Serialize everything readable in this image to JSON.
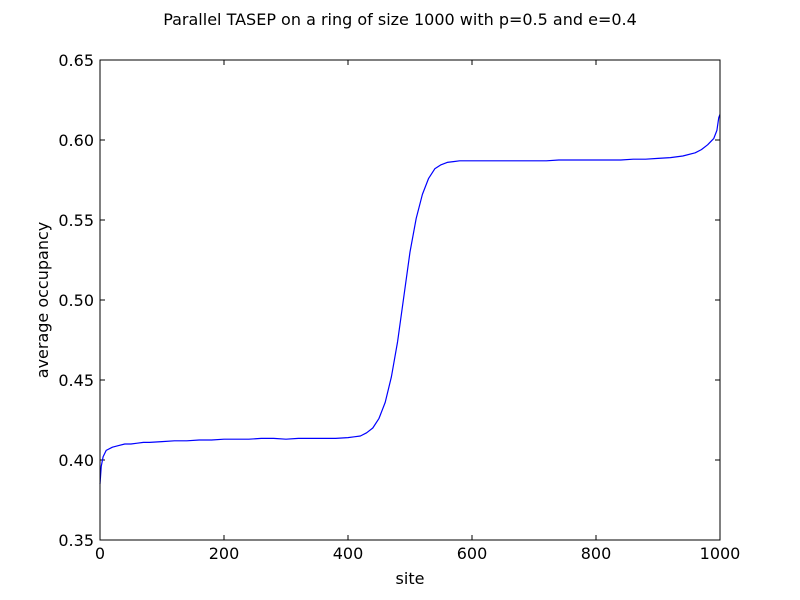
{
  "chart_data": {
    "type": "line",
    "title": "Parallel TASEP on a ring of size 1000 with p=0.5 and e=0.4",
    "xlabel": "site",
    "ylabel": "average occupancy",
    "xlim": [
      0,
      1000
    ],
    "ylim": [
      0.35,
      0.65
    ],
    "xticks": [
      0,
      200,
      400,
      600,
      800,
      1000
    ],
    "xtick_labels": [
      "0",
      "200",
      "400",
      "600",
      "800",
      "1000"
    ],
    "yticks": [
      0.35,
      0.4,
      0.45,
      0.5,
      0.55,
      0.6,
      0.65
    ],
    "ytick_labels": [
      "0.35",
      "0.40",
      "0.45",
      "0.50",
      "0.55",
      "0.60",
      "0.65"
    ],
    "grid": false,
    "series": [
      {
        "color": "#0000ff",
        "x": [
          0,
          2,
          5,
          10,
          20,
          30,
          40,
          50,
          60,
          70,
          80,
          100,
          120,
          140,
          160,
          180,
          200,
          220,
          240,
          260,
          280,
          300,
          320,
          340,
          360,
          380,
          400,
          410,
          420,
          430,
          440,
          450,
          460,
          470,
          480,
          490,
          500,
          510,
          520,
          530,
          540,
          550,
          560,
          570,
          580,
          590,
          600,
          620,
          640,
          660,
          680,
          700,
          720,
          740,
          760,
          780,
          800,
          820,
          840,
          860,
          880,
          900,
          920,
          940,
          960,
          970,
          980,
          990,
          995,
          998,
          1000
        ],
        "y": [
          0.385,
          0.396,
          0.402,
          0.406,
          0.408,
          0.409,
          0.41,
          0.41,
          0.4105,
          0.411,
          0.411,
          0.4115,
          0.412,
          0.412,
          0.4125,
          0.4125,
          0.413,
          0.413,
          0.413,
          0.4135,
          0.4135,
          0.413,
          0.4135,
          0.4135,
          0.4135,
          0.4135,
          0.414,
          0.4145,
          0.415,
          0.417,
          0.42,
          0.426,
          0.436,
          0.452,
          0.474,
          0.502,
          0.53,
          0.551,
          0.566,
          0.576,
          0.582,
          0.5845,
          0.586,
          0.5865,
          0.587,
          0.587,
          0.587,
          0.587,
          0.587,
          0.587,
          0.587,
          0.587,
          0.587,
          0.5875,
          0.5875,
          0.5875,
          0.5875,
          0.5875,
          0.5875,
          0.588,
          0.588,
          0.5885,
          0.589,
          0.59,
          0.592,
          0.594,
          0.597,
          0.601,
          0.606,
          0.614,
          0.616
        ]
      }
    ]
  }
}
